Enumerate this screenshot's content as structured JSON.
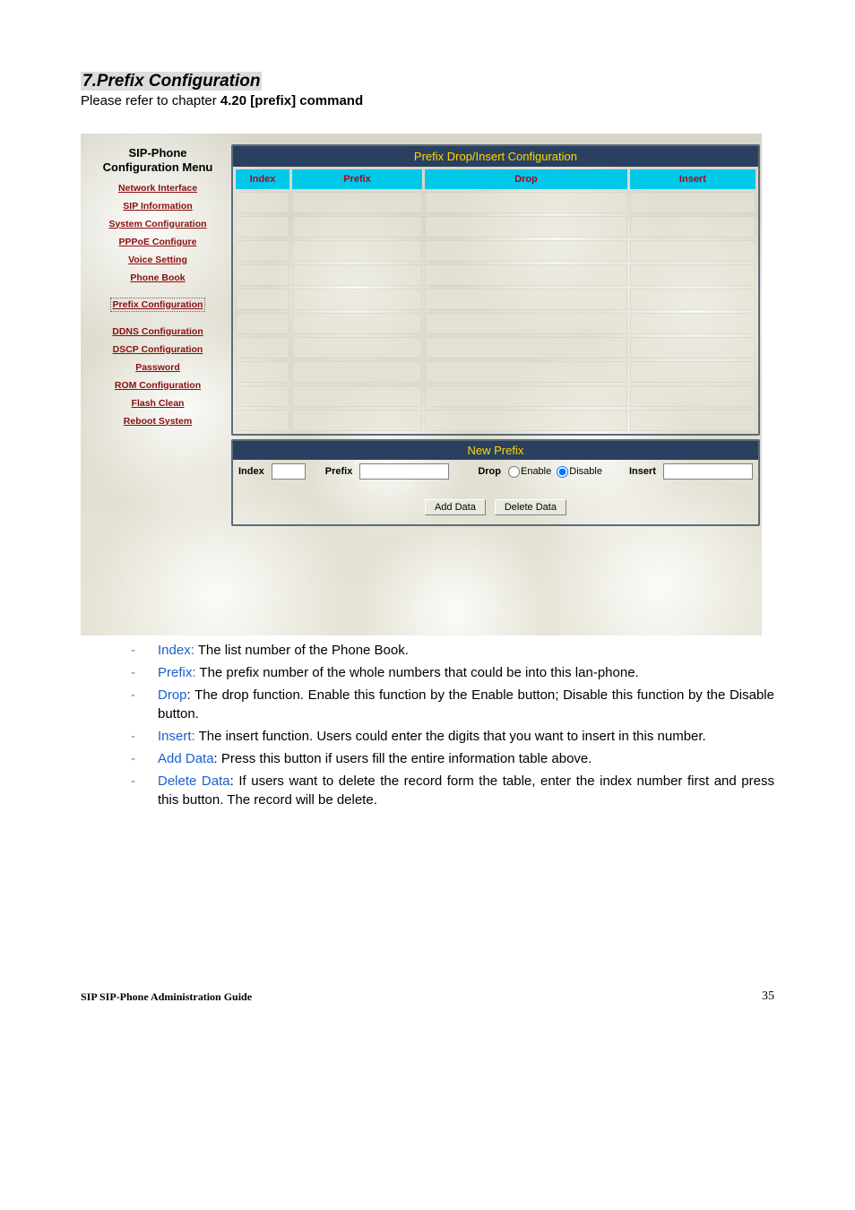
{
  "doc": {
    "section_title": "7.Prefix Configuration",
    "subtitle_prefix": "Please refer to chapter ",
    "subtitle_bold": "4.20 [prefix] command",
    "page_number": "35",
    "footer_text": "SIP SIP-Phone   Administration Guide"
  },
  "sidebar": {
    "title": "SIP-Phone Configuration Menu",
    "items": [
      "Network Interface",
      "SIP Information",
      "System Configuration",
      "PPPoE Configure",
      "Voice Setting",
      "Phone Book",
      "Prefix Configuration",
      "DDNS Configuration",
      "DSCP Configuration",
      "Password",
      "ROM Configuration",
      "Flash Clean",
      "Reboot System"
    ],
    "active_index": 6
  },
  "table": {
    "title": "Prefix Drop/Insert Configuration",
    "columns": [
      "Index",
      "Prefix",
      "Drop",
      "Insert"
    ],
    "row_count": 10,
    "header_bg": "#00c8e8",
    "header_fg": "#b00020",
    "title_bg": "#2a4060",
    "title_fg": "#ffd700"
  },
  "new_prefix": {
    "title": "New Prefix",
    "labels": {
      "index": "Index",
      "prefix": "Prefix",
      "drop": "Drop",
      "enable": "Enable",
      "disable": "Disable",
      "insert": "Insert"
    },
    "drop_selected": "disable",
    "buttons": {
      "add": "Add Data",
      "delete": "Delete Data"
    }
  },
  "descriptions": [
    {
      "term": "Index:",
      "text": " The list number of the Phone Book."
    },
    {
      "term": "Prefix:",
      "text": " The prefix number of the whole numbers that could be into this lan-phone."
    },
    {
      "term": "Drop",
      "sep": ": ",
      "text": "The drop function. Enable this function by the Enable button; Disable this function by the Disable button."
    },
    {
      "term": "Insert:",
      "text": " The insert function. Users could enter the digits that you want to insert in this number."
    },
    {
      "term": "Add Data",
      "sep": ": ",
      "text": "Press this button if users fill the entire information table above."
    },
    {
      "term": "Delete Data",
      "sep": ": ",
      "text": "If users want to delete the record form the table, enter the index number first and press this button. The record will be delete."
    }
  ]
}
